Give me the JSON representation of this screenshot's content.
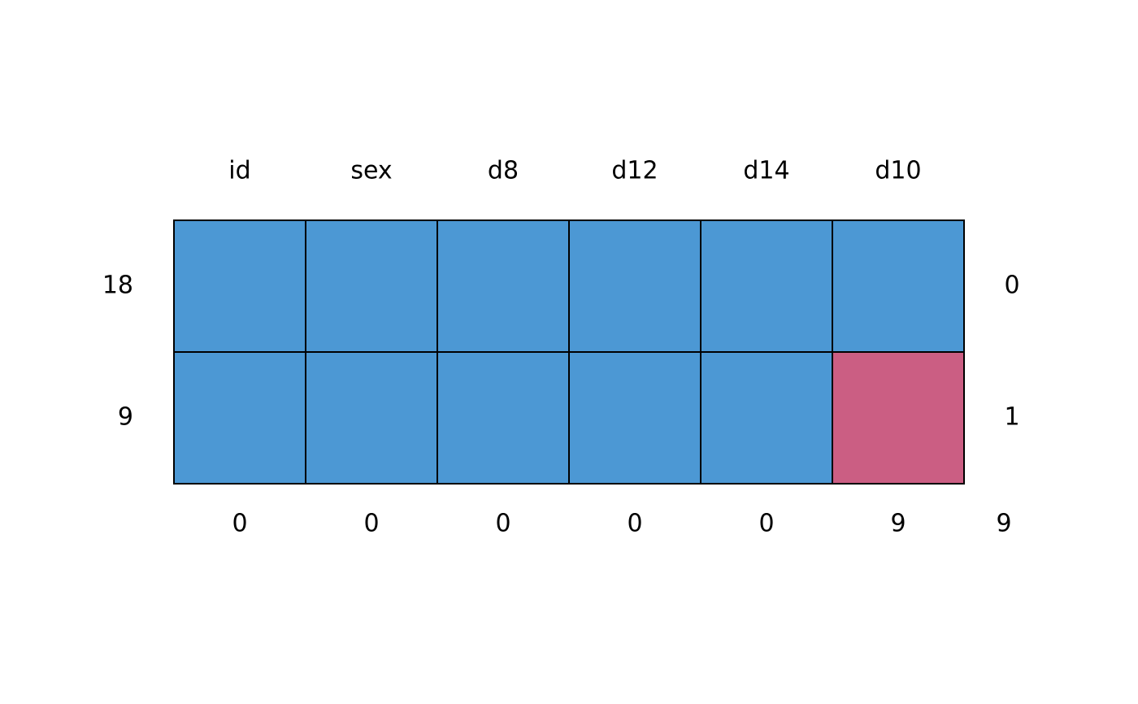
{
  "chart_data": {
    "type": "pattern",
    "columns": [
      "id",
      "sex",
      "d8",
      "d12",
      "d14",
      "d10"
    ],
    "row_counts": [
      18,
      9
    ],
    "row_missing": [
      0,
      1
    ],
    "patterns": [
      [
        1,
        1,
        1,
        1,
        1,
        1
      ],
      [
        1,
        1,
        1,
        1,
        1,
        0
      ]
    ],
    "column_missing": [
      0,
      0,
      0,
      0,
      0,
      9
    ],
    "total_missing": 9,
    "colors": {
      "observed": "#4c98d4",
      "missing": "#cb5e83"
    }
  }
}
